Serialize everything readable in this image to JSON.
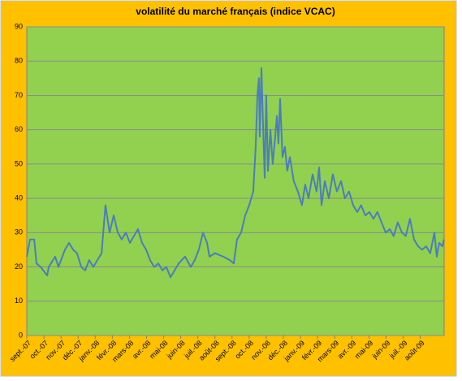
{
  "chart_data": {
    "type": "line",
    "title": "volatilité du marché français (indice VCAC)",
    "x": [
      0,
      0.19,
      0.43,
      0.57,
      0.81,
      1.19,
      1.28,
      1.66,
      1.85,
      2.23,
      2.47,
      2.71,
      2.94,
      3.18,
      3.42,
      3.65,
      3.89,
      4.13,
      4.37,
      4.6,
      4.84,
      5.08,
      5.32,
      5.55,
      5.79,
      6.03,
      6.26,
      6.5,
      6.74,
      6.98,
      7.21,
      7.45,
      7.69,
      7.93,
      8.16,
      8.4,
      8.64,
      8.88,
      9.25,
      9.59,
      9.82,
      10.06,
      10.3,
      10.54,
      10.68,
      11.01,
      11.49,
      11.87,
      12.1,
      12.29,
      12.53,
      12.77,
      13.0,
      13.24,
      13.38,
      13.48,
      13.57,
      13.62,
      13.72,
      13.81,
      13.91,
      14.0,
      14.1,
      14.24,
      14.38,
      14.52,
      14.62,
      14.71,
      14.81,
      14.95,
      15.09,
      15.23,
      15.38,
      15.61,
      15.85,
      16.09,
      16.28,
      16.47,
      16.71,
      16.94,
      17.09,
      17.23,
      17.42,
      17.66,
      17.89,
      18.13,
      18.37,
      18.6,
      18.84,
      19.08,
      19.32,
      19.55,
      19.79,
      20.03,
      20.27,
      20.5,
      20.74,
      20.98,
      21.22,
      21.45,
      21.69,
      21.93,
      22.16,
      22.4,
      22.64,
      22.88,
      23.11,
      23.35,
      23.59,
      23.83,
      23.97,
      24.11,
      24.3,
      24.39
    ],
    "series": [
      {
        "name": "VCAC",
        "color": "#4a7ebb",
        "values": [
          23,
          28,
          28,
          21,
          20,
          17.5,
          20,
          23,
          20,
          25,
          27,
          25,
          24,
          20,
          19,
          22,
          20,
          22,
          24,
          38,
          30,
          35,
          30,
          28,
          30,
          27,
          29,
          31,
          27,
          25,
          22,
          20,
          21,
          19,
          20,
          17,
          19,
          21,
          23,
          20,
          22,
          25,
          30,
          27,
          23,
          24,
          23,
          22,
          21,
          28,
          30,
          35,
          38,
          42,
          55,
          70,
          75,
          58,
          78,
          62,
          46,
          70,
          48,
          60,
          50,
          58,
          64,
          56,
          69,
          52,
          55,
          48,
          52,
          45,
          42,
          38,
          44,
          40,
          47,
          42,
          49,
          38,
          45,
          40,
          47,
          42,
          45,
          40,
          42,
          38,
          36,
          38,
          35,
          36,
          34,
          36,
          33,
          30,
          31,
          29,
          33,
          30,
          29,
          34,
          28,
          26,
          25,
          26,
          24,
          30,
          23,
          27,
          26,
          28
        ]
      }
    ],
    "xlim": [
      0,
      24.4
    ],
    "xticks": [
      {
        "value": 0,
        "label": "sept.-07"
      },
      {
        "value": 1,
        "label": "oct.-07"
      },
      {
        "value": 2,
        "label": "nov.-07"
      },
      {
        "value": 3,
        "label": "déc.-07"
      },
      {
        "value": 4,
        "label": "janv.-08"
      },
      {
        "value": 5,
        "label": "févr.-08"
      },
      {
        "value": 6,
        "label": "mars-08"
      },
      {
        "value": 7,
        "label": "avr.-08"
      },
      {
        "value": 8,
        "label": "mai-08"
      },
      {
        "value": 9,
        "label": "juin-08"
      },
      {
        "value": 10,
        "label": "juil.-08"
      },
      {
        "value": 11,
        "label": "août-08"
      },
      {
        "value": 12,
        "label": "sept.-08"
      },
      {
        "value": 13,
        "label": "oct.-08"
      },
      {
        "value": 14,
        "label": "nov.-08"
      },
      {
        "value": 15,
        "label": "déc.-08"
      },
      {
        "value": 16,
        "label": "janv.-09"
      },
      {
        "value": 17,
        "label": "févr.-09"
      },
      {
        "value": 18,
        "label": "mars-09"
      },
      {
        "value": 19,
        "label": "avr.-09"
      },
      {
        "value": 20,
        "label": "mai-09"
      },
      {
        "value": 21,
        "label": "juin-09"
      },
      {
        "value": 22,
        "label": "juil.-09"
      },
      {
        "value": 23,
        "label": "août-09"
      }
    ],
    "ylim": [
      0,
      90
    ],
    "yticks": [
      0,
      10,
      20,
      30,
      40,
      50,
      60,
      70,
      80,
      90
    ],
    "grid": true
  }
}
